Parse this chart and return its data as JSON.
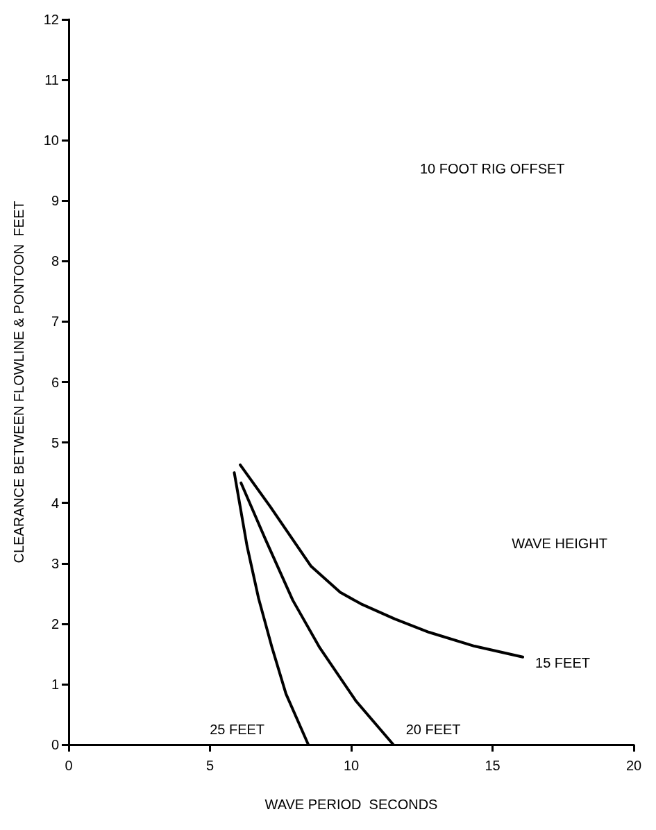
{
  "chart_data": {
    "type": "line",
    "xlabel": "WAVE PERIOD  SECONDS",
    "ylabel": "CLEARANCE BETWEEN FLOWLINE & PONTOON  FEET",
    "legend_title": "WAVE HEIGHT",
    "annotations": [
      "10 FOOT RIG OFFSET"
    ],
    "xlim": [
      0,
      20
    ],
    "xticks": [
      0,
      5,
      10,
      15,
      20
    ],
    "ylim": [
      0,
      12
    ],
    "yticks": [
      0,
      1,
      2,
      3,
      4,
      5,
      6,
      7,
      8,
      9,
      10,
      11,
      12
    ],
    "grid": false,
    "marker": "none",
    "line_style": "solid",
    "series": [
      {
        "name": "15 FEET",
        "color": "#000000",
        "x": [
          6.07,
          7.13,
          8.58,
          9.61,
          10.34,
          11.54,
          12.75,
          14.36,
          16.07
        ],
        "values": [
          4.63,
          3.94,
          2.95,
          2.52,
          2.33,
          2.08,
          1.86,
          1.63,
          1.45
        ]
      },
      {
        "name": "20 FEET",
        "color": "#000000",
        "x": [
          6.1,
          6.96,
          7.93,
          8.89,
          10.17,
          11.49
        ],
        "values": [
          4.33,
          3.4,
          2.39,
          1.6,
          0.72,
          0
        ]
      },
      {
        "name": "25 FEET",
        "color": "#000000",
        "x": [
          5.86,
          6.31,
          6.72,
          7.2,
          7.69,
          8.48
        ],
        "values": [
          4.5,
          3.29,
          2.42,
          1.6,
          0.84,
          0
        ]
      }
    ]
  }
}
